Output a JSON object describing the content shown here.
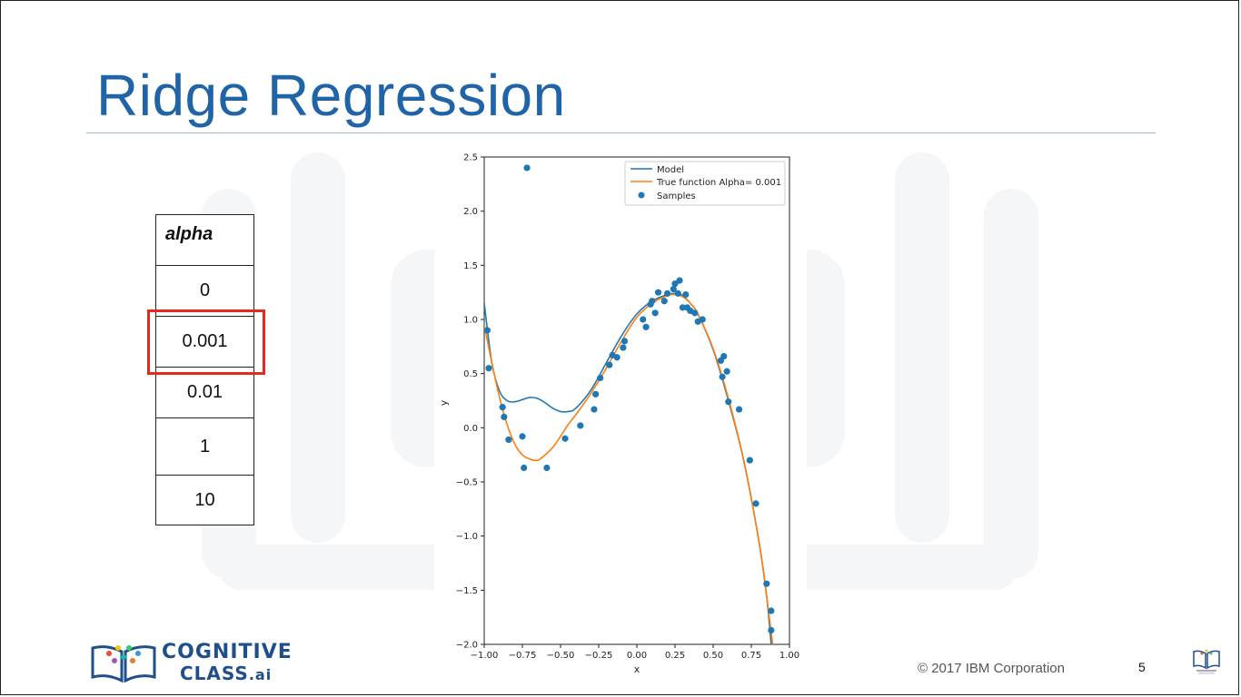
{
  "slide": {
    "title": "Ridge Regression",
    "copyright": "© 2017 IBM Corporation",
    "page_number": "5",
    "logo_line1": "COGNITIVE",
    "logo_line2": "CLASS",
    "logo_suffix": ".ai"
  },
  "alpha_table": {
    "header": "alpha",
    "values": [
      "0",
      "0.001",
      "0.01",
      "1",
      "10"
    ],
    "highlighted_index": 1
  },
  "colors": {
    "title": "#1f63a8",
    "highlight": "#e8281e",
    "model": "#1f77b4",
    "true_function": "#ff7f0e",
    "samples": "#1f77b4"
  },
  "chart_data": {
    "type": "scatter",
    "title": "",
    "xlabel": "x",
    "ylabel": "y",
    "xlim": [
      -1.0,
      1.0
    ],
    "ylim": [
      -2.0,
      2.5
    ],
    "xticks": [
      "−1.00",
      "−0.75",
      "−0.50",
      "−0.25",
      "0.00",
      "0.25",
      "0.50",
      "0.75",
      "1.00"
    ],
    "yticks": [
      "−2.0",
      "−1.5",
      "−1.0",
      "−0.5",
      "0.0",
      "0.5",
      "1.0",
      "1.5",
      "2.0",
      "2.5"
    ],
    "xtick_values": [
      -1.0,
      -0.75,
      -0.5,
      -0.25,
      0.0,
      0.25,
      0.5,
      0.75,
      1.0
    ],
    "ytick_values": [
      -2.0,
      -1.5,
      -1.0,
      -0.5,
      0.0,
      0.5,
      1.0,
      1.5,
      2.0,
      2.5
    ],
    "grid": false,
    "legend_position": "top-right",
    "legend": [
      "Model",
      "True function Alpha= 0.001",
      "Samples"
    ],
    "series": [
      {
        "name": "Model",
        "type": "line",
        "x": [
          -1.0,
          -0.95,
          -0.9,
          -0.85,
          -0.8,
          -0.75,
          -0.7,
          -0.65,
          -0.6,
          -0.55,
          -0.5,
          -0.45,
          -0.4,
          -0.3,
          -0.2,
          -0.1,
          0.0,
          0.1,
          0.2,
          0.25,
          0.3,
          0.35,
          0.4,
          0.5,
          0.6,
          0.7,
          0.8,
          0.85,
          0.88
        ],
        "y": [
          1.15,
          0.6,
          0.34,
          0.25,
          0.24,
          0.26,
          0.28,
          0.27,
          0.23,
          0.18,
          0.15,
          0.15,
          0.18,
          0.35,
          0.6,
          0.85,
          1.05,
          1.17,
          1.23,
          1.24,
          1.22,
          1.15,
          1.05,
          0.72,
          0.25,
          -0.3,
          -1.05,
          -1.55,
          -2.0
        ]
      },
      {
        "name": "True function Alpha= 0.001",
        "type": "line",
        "x": [
          -1.0,
          -0.95,
          -0.9,
          -0.85,
          -0.8,
          -0.75,
          -0.7,
          -0.65,
          -0.6,
          -0.55,
          -0.5,
          -0.45,
          -0.4,
          -0.3,
          -0.2,
          -0.1,
          0.0,
          0.1,
          0.2,
          0.25,
          0.3,
          0.35,
          0.4,
          0.5,
          0.6,
          0.7,
          0.8,
          0.85,
          0.89
        ],
        "y": [
          0.95,
          0.6,
          0.28,
          0.03,
          -0.15,
          -0.25,
          -0.29,
          -0.3,
          -0.25,
          -0.18,
          -0.08,
          0.03,
          0.12,
          0.32,
          0.55,
          0.8,
          1.02,
          1.15,
          1.22,
          1.23,
          1.21,
          1.15,
          1.05,
          0.73,
          0.27,
          -0.3,
          -1.05,
          -1.55,
          -2.0
        ]
      },
      {
        "name": "Samples",
        "type": "scatter",
        "x": [
          -0.72,
          -0.98,
          -0.97,
          -0.88,
          -0.87,
          -0.84,
          -0.75,
          -0.74,
          -0.59,
          -0.47,
          -0.37,
          -0.28,
          -0.27,
          -0.24,
          -0.18,
          -0.16,
          -0.13,
          -0.09,
          -0.08,
          0.04,
          0.06,
          0.09,
          0.1,
          0.12,
          0.14,
          0.18,
          0.2,
          0.24,
          0.25,
          0.27,
          0.28,
          0.3,
          0.32,
          0.33,
          0.35,
          0.38,
          0.4,
          0.43,
          0.55,
          0.56,
          0.57,
          0.59,
          0.6,
          0.67,
          0.74,
          0.78,
          0.85,
          0.88,
          0.88
        ],
        "y": [
          2.4,
          0.9,
          0.55,
          0.19,
          0.1,
          -0.11,
          -0.08,
          -0.37,
          -0.37,
          -0.1,
          0.02,
          0.17,
          0.31,
          0.46,
          0.58,
          0.67,
          0.65,
          0.74,
          0.8,
          1.0,
          0.93,
          1.14,
          1.17,
          1.06,
          1.25,
          1.17,
          1.24,
          1.28,
          1.33,
          1.24,
          1.36,
          1.11,
          1.23,
          1.11,
          1.08,
          1.06,
          0.98,
          1.0,
          0.62,
          0.47,
          0.66,
          0.52,
          0.24,
          0.17,
          -0.3,
          -0.7,
          -1.44,
          -1.69,
          -1.87
        ]
      }
    ]
  }
}
